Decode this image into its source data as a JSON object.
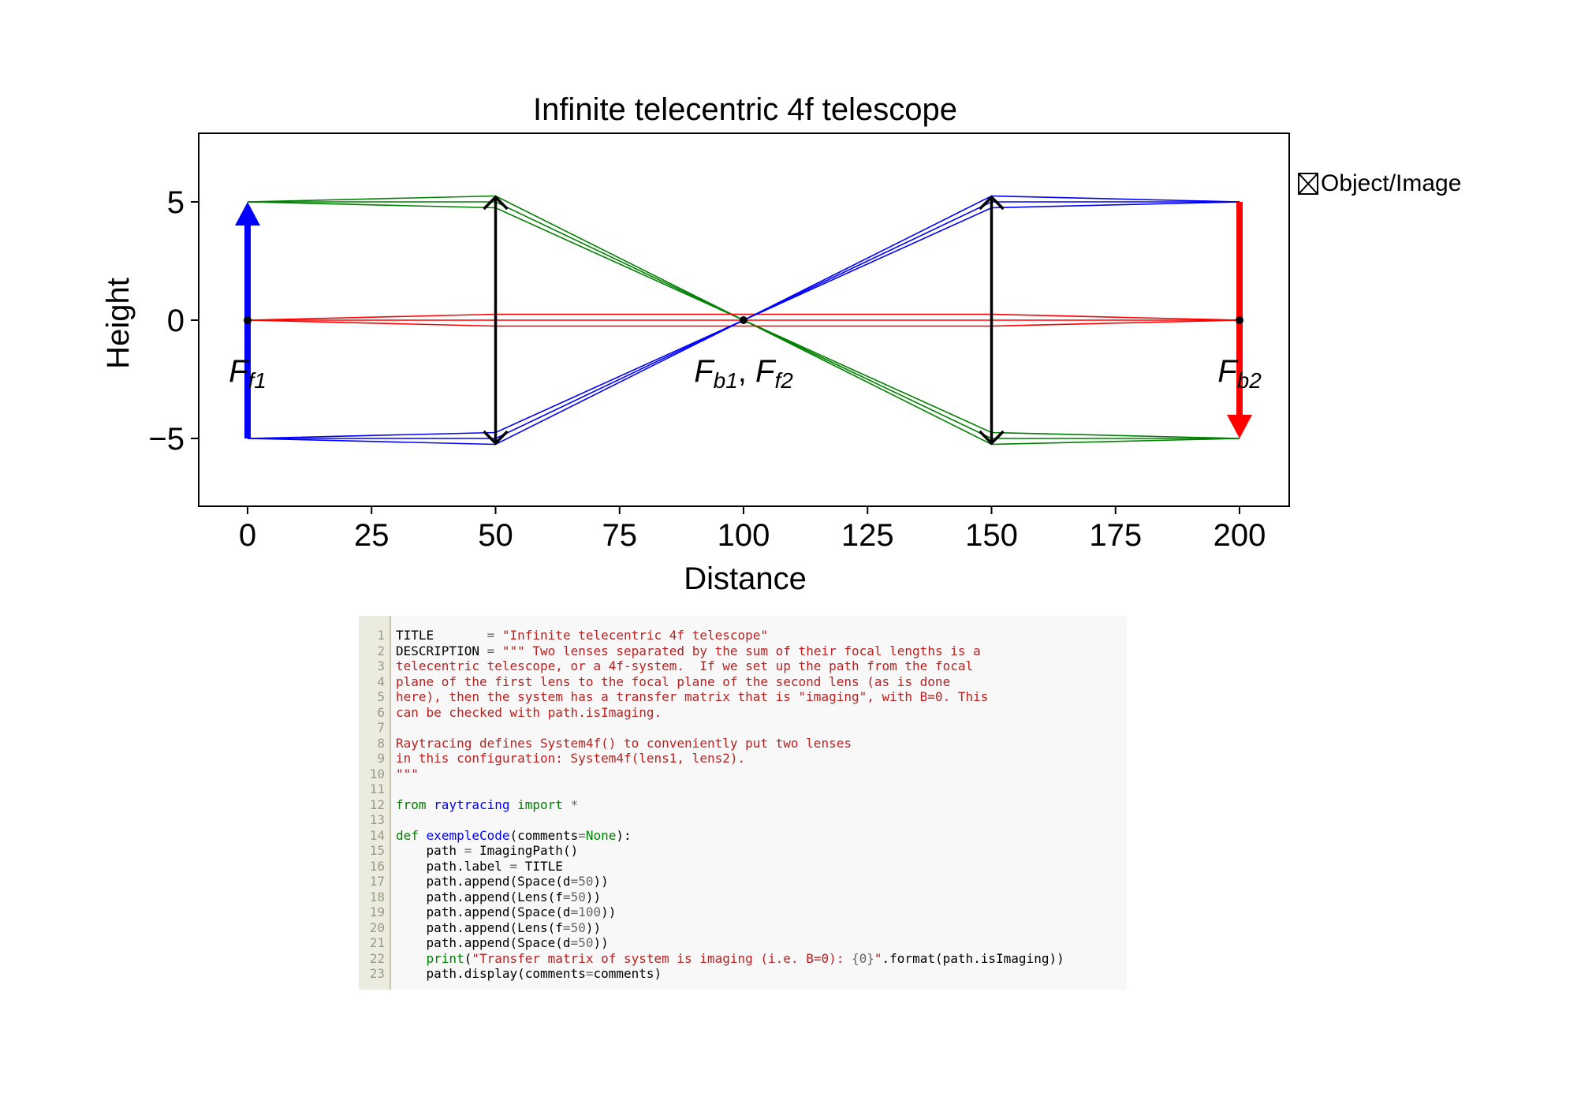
{
  "chart_data": {
    "type": "line",
    "title": "Infinite telecentric 4f telescope",
    "xlabel": "Distance",
    "ylabel": "Height",
    "xlim": [
      -20,
      420
    ],
    "ylim": [
      -7.5,
      7.5
    ],
    "xticks": [
      0,
      25,
      50,
      75,
      100,
      125,
      150,
      175,
      200
    ],
    "xtick_labels": [
      "0",
      "25",
      "50",
      "75",
      "100",
      "125",
      "150",
      "175",
      "200"
    ],
    "yticks": [
      5,
      0,
      -5
    ],
    "ytick_labels": [
      "5",
      "0",
      "−5"
    ],
    "grid": false,
    "legend": {
      "placement": "outside-right",
      "entries": [
        "Object/Image"
      ]
    },
    "colors": {
      "green": "#008000",
      "blue": "#0000ff",
      "red": "#ff0000",
      "lens": "#000000",
      "object": "#0000ff",
      "image": "#ff0000"
    },
    "object": {
      "x": 0,
      "y0": -5,
      "y1": 5
    },
    "image": {
      "x": 200,
      "y0": 5,
      "y1": -5
    },
    "lenses": [
      {
        "x": 50,
        "half_height": 5.2
      },
      {
        "x": 150,
        "half_height": 5.2
      }
    ],
    "focal_points": [
      {
        "x": 0,
        "y": 0,
        "label": "F",
        "sub": "f1"
      },
      {
        "x": 100,
        "y": 0,
        "label": "F",
        "sub": "b1",
        "label2": "F",
        "sub2": "f2"
      },
      {
        "x": 200,
        "y": 0,
        "label": "F",
        "sub": "b2"
      }
    ],
    "series": [
      {
        "color": "green",
        "x": [
          0,
          50,
          150,
          200
        ],
        "y": [
          5,
          5.25,
          -5.25,
          -5
        ]
      },
      {
        "color": "green",
        "x": [
          0,
          50,
          150,
          200
        ],
        "y": [
          5,
          5.0,
          -5.0,
          -5
        ]
      },
      {
        "color": "green",
        "x": [
          0,
          50,
          150,
          200
        ],
        "y": [
          5,
          4.75,
          -4.75,
          -5
        ]
      },
      {
        "color": "red",
        "x": [
          0,
          50,
          150,
          200
        ],
        "y": [
          0,
          0.25,
          0.25,
          0
        ]
      },
      {
        "color": "red",
        "x": [
          0,
          50,
          150,
          200
        ],
        "y": [
          0,
          0,
          0,
          0
        ]
      },
      {
        "color": "red",
        "x": [
          0,
          50,
          150,
          200
        ],
        "y": [
          0,
          -0.25,
          -0.25,
          0
        ]
      },
      {
        "color": "blue",
        "x": [
          0,
          50,
          150,
          200
        ],
        "y": [
          -5,
          -4.75,
          4.75,
          5
        ]
      },
      {
        "color": "blue",
        "x": [
          0,
          50,
          150,
          200
        ],
        "y": [
          -5,
          -5.0,
          5.0,
          5
        ]
      },
      {
        "color": "blue",
        "x": [
          0,
          50,
          150,
          200
        ],
        "y": [
          -5,
          -5.25,
          5.25,
          5
        ]
      }
    ]
  },
  "code": {
    "line_numbers": [
      "1",
      "2",
      "3",
      "4",
      "5",
      "6",
      "7",
      "8",
      "9",
      "10",
      "11",
      "12",
      "13",
      "14",
      "15",
      "16",
      "17",
      "18",
      "19",
      "20",
      "21",
      "22",
      "23"
    ],
    "lines": [
      [
        [
          "plain",
          "TITLE       "
        ],
        [
          "op",
          "="
        ],
        [
          "plain",
          " "
        ],
        [
          "str",
          "\"Infinite telecentric 4f telescope\""
        ]
      ],
      [
        [
          "plain",
          "DESCRIPTION "
        ],
        [
          "op",
          "="
        ],
        [
          "plain",
          " "
        ],
        [
          "str",
          "\"\"\" Two lenses separated by the sum of their focal lengths is a"
        ]
      ],
      [
        [
          "str",
          "telecentric telescope, or a 4f-system.  If we set up the path from the focal"
        ]
      ],
      [
        [
          "str",
          "plane of the first lens to the focal plane of the second lens (as is done"
        ]
      ],
      [
        [
          "str",
          "here), then the system has a transfer matrix that is \"imaging\", with B=0. This"
        ]
      ],
      [
        [
          "str",
          "can be checked with path.isImaging."
        ]
      ],
      [
        [
          "str",
          ""
        ]
      ],
      [
        [
          "str",
          "Raytracing defines System4f() to conveniently put two lenses"
        ]
      ],
      [
        [
          "str",
          "in this configuration: System4f(lens1, lens2)."
        ]
      ],
      [
        [
          "str",
          "\"\"\""
        ]
      ],
      [
        [
          "plain",
          ""
        ]
      ],
      [
        [
          "kw",
          "from"
        ],
        [
          "plain",
          " "
        ],
        [
          "def",
          "raytracing"
        ],
        [
          "plain",
          " "
        ],
        [
          "kw",
          "import"
        ],
        [
          "plain",
          " "
        ],
        [
          "op",
          "*"
        ]
      ],
      [
        [
          "plain",
          ""
        ]
      ],
      [
        [
          "kw",
          "def"
        ],
        [
          "plain",
          " "
        ],
        [
          "def",
          "exempleCode"
        ],
        [
          "plain",
          "(comments"
        ],
        [
          "op",
          "="
        ],
        [
          "kw",
          "None"
        ],
        [
          "plain",
          "):"
        ]
      ],
      [
        [
          "plain",
          "    path "
        ],
        [
          "op",
          "="
        ],
        [
          "plain",
          " ImagingPath()"
        ]
      ],
      [
        [
          "plain",
          "    path.label "
        ],
        [
          "op",
          "="
        ],
        [
          "plain",
          " TITLE"
        ]
      ],
      [
        [
          "plain",
          "    path.append(Space(d"
        ],
        [
          "op",
          "="
        ],
        [
          "num",
          "50"
        ],
        [
          "plain",
          "))"
        ]
      ],
      [
        [
          "plain",
          "    path.append(Lens(f"
        ],
        [
          "op",
          "="
        ],
        [
          "num",
          "50"
        ],
        [
          "plain",
          "))"
        ]
      ],
      [
        [
          "plain",
          "    path.append(Space(d"
        ],
        [
          "op",
          "="
        ],
        [
          "num",
          "100"
        ],
        [
          "plain",
          "))"
        ]
      ],
      [
        [
          "plain",
          "    path.append(Lens(f"
        ],
        [
          "op",
          "="
        ],
        [
          "num",
          "50"
        ],
        [
          "plain",
          "))"
        ]
      ],
      [
        [
          "plain",
          "    path.append(Space(d"
        ],
        [
          "op",
          "="
        ],
        [
          "num",
          "50"
        ],
        [
          "plain",
          "))"
        ]
      ],
      [
        [
          "plain",
          "    "
        ],
        [
          "kw",
          "print"
        ],
        [
          "plain",
          "("
        ],
        [
          "str",
          "\"Transfer matrix of system is imaging (i.e. B=0): "
        ],
        [
          "num",
          "{0}"
        ],
        [
          "str",
          "\""
        ],
        [
          "plain",
          ".format(path.isImaging))"
        ]
      ],
      [
        [
          "plain",
          "    path.display(comments"
        ],
        [
          "op",
          "="
        ],
        [
          "plain",
          "comments)"
        ]
      ]
    ]
  }
}
